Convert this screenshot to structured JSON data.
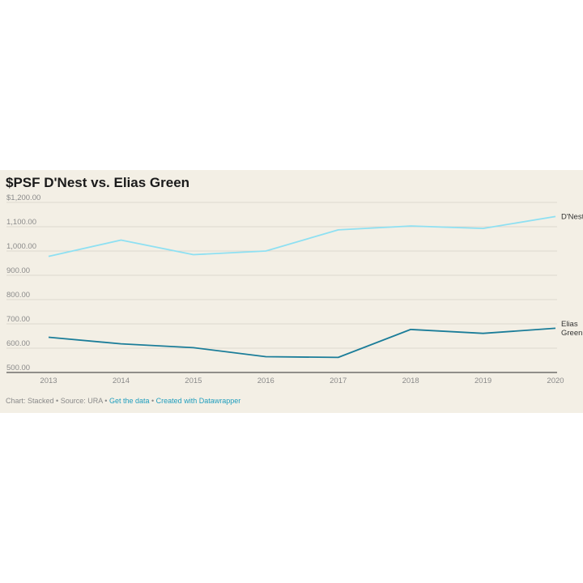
{
  "title": "$PSF D'Nest vs. Elias Green",
  "footer": {
    "chart_text": "Chart: Stacked",
    "source_text": "Source: URA",
    "get_data_label": "Get the data",
    "created_with_label": "Created with Datawrapper",
    "separator": "•"
  },
  "colors": {
    "background": "#f3efe5",
    "grid": "#dcd8cf",
    "axis_text": "#8a8a8a",
    "d_nest": "#8ee0f2",
    "elias_green": "#1b7d99"
  },
  "chart_data": {
    "type": "line",
    "title": "$PSF D'Nest vs. Elias Green",
    "x": [
      "2013",
      "2014",
      "2015",
      "2016",
      "2017",
      "2018",
      "2019",
      "2020"
    ],
    "y_ticks": [
      "$1,200.00",
      "1,100.00",
      "1,000.00",
      "900.00",
      "800.00",
      "700.00",
      "600.00",
      "500.00"
    ],
    "ylim": [
      500,
      1200
    ],
    "grid": true,
    "series": [
      {
        "name": "D'Nest",
        "label_lines": [
          "D'Nest"
        ],
        "values": [
          978,
          1045,
          985,
          1000,
          1087,
          1103,
          1093,
          1142
        ]
      },
      {
        "name": "Elias Green",
        "label_lines": [
          "Elias",
          "Green"
        ],
        "values": [
          645,
          618,
          602,
          565,
          562,
          677,
          661,
          682
        ]
      }
    ]
  }
}
